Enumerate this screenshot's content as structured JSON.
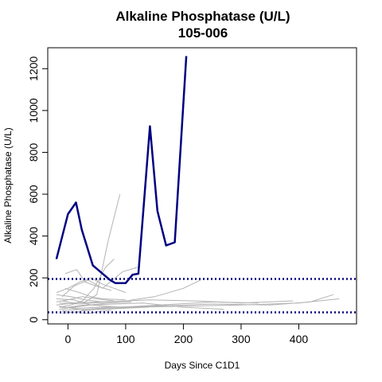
{
  "chart_data": {
    "type": "line",
    "title": "Alkaline Phosphatase (U/L)",
    "subtitle": "105-006",
    "xlabel": "Days Since C1D1",
    "ylabel": "Alkaline Phosphatase (U/L)",
    "xlim": [
      -35,
      500
    ],
    "ylim": [
      -20,
      1300
    ],
    "x_ticks": [
      0,
      100,
      200,
      300,
      400
    ],
    "y_ticks": [
      0,
      200,
      400,
      600,
      800,
      1000,
      1200
    ],
    "grid": false,
    "legend": "none",
    "colors": {
      "highlight": "#000080",
      "background_series": "#b3b3b3",
      "reference": "#000080"
    },
    "reference_lines": [
      {
        "y": 195,
        "style": "dotted"
      },
      {
        "y": 35,
        "style": "dotted"
      }
    ],
    "highlight_series": {
      "x": [
        -20,
        0,
        14,
        24,
        43,
        60,
        73,
        82,
        100,
        112,
        122,
        142,
        155,
        170,
        185,
        205
      ],
      "y": [
        290,
        505,
        560,
        430,
        260,
        220,
        190,
        175,
        175,
        215,
        220,
        925,
        520,
        355,
        370,
        1260
      ]
    },
    "background_series": [
      {
        "x": [
          -10,
          10,
          30,
          50,
          70,
          90
        ],
        "y": [
          90,
          80,
          85,
          120,
          380,
          600
        ]
      },
      {
        "x": [
          -15,
          5,
          25,
          45,
          65,
          80
        ],
        "y": [
          60,
          70,
          90,
          150,
          250,
          290
        ]
      },
      {
        "x": [
          -10,
          10,
          35,
          60,
          95,
          120
        ],
        "y": [
          110,
          160,
          190,
          150,
          230,
          250
        ]
      },
      {
        "x": [
          -20,
          0,
          20,
          40,
          60,
          80,
          100
        ],
        "y": [
          130,
          150,
          180,
          200,
          170,
          150,
          130
        ]
      },
      {
        "x": [
          -5,
          15,
          30,
          50,
          75
        ],
        "y": [
          220,
          240,
          180,
          160,
          140
        ]
      },
      {
        "x": [
          -20,
          10,
          50,
          100,
          150,
          200,
          230
        ],
        "y": [
          70,
          80,
          85,
          90,
          110,
          150,
          190
        ]
      },
      {
        "x": [
          -15,
          20,
          60,
          120,
          200,
          300,
          400,
          470
        ],
        "y": [
          60,
          55,
          60,
          60,
          65,
          70,
          80,
          100
        ]
      },
      {
        "x": [
          -10,
          30,
          80,
          150,
          250,
          350,
          420,
          460
        ],
        "y": [
          45,
          50,
          60,
          65,
          75,
          70,
          85,
          120
        ]
      },
      {
        "x": [
          -15,
          20,
          70,
          140,
          220,
          300,
          390
        ],
        "y": [
          80,
          75,
          85,
          95,
          90,
          80,
          90
        ]
      },
      {
        "x": [
          -20,
          10,
          40,
          90,
          160,
          250,
          330
        ],
        "y": [
          100,
          95,
          70,
          60,
          70,
          85,
          80
        ]
      },
      {
        "x": [
          -10,
          20,
          50,
          80,
          120,
          170
        ],
        "y": [
          30,
          40,
          50,
          55,
          60,
          70
        ]
      },
      {
        "x": [
          -15,
          5,
          30,
          60,
          100,
          140
        ],
        "y": [
          65,
          55,
          45,
          50,
          55,
          60
        ]
      },
      {
        "x": [
          -20,
          0,
          25,
          50,
          80
        ],
        "y": [
          85,
          95,
          110,
          100,
          90
        ]
      },
      {
        "x": [
          -5,
          20,
          40,
          60,
          100
        ],
        "y": [
          150,
          130,
          110,
          100,
          95
        ]
      },
      {
        "x": [
          -10,
          15,
          35,
          55,
          75
        ],
        "y": [
          40,
          35,
          30,
          40,
          45
        ]
      },
      {
        "x": [
          0,
          30,
          80,
          130,
          200,
          270
        ],
        "y": [
          60,
          70,
          75,
          80,
          60,
          50
        ]
      },
      {
        "x": [
          -15,
          10,
          40,
          70,
          110
        ],
        "y": [
          50,
          60,
          70,
          80,
          85
        ]
      },
      {
        "x": [
          -20,
          5,
          30,
          60
        ],
        "y": [
          120,
          110,
          95,
          85
        ]
      }
    ]
  }
}
